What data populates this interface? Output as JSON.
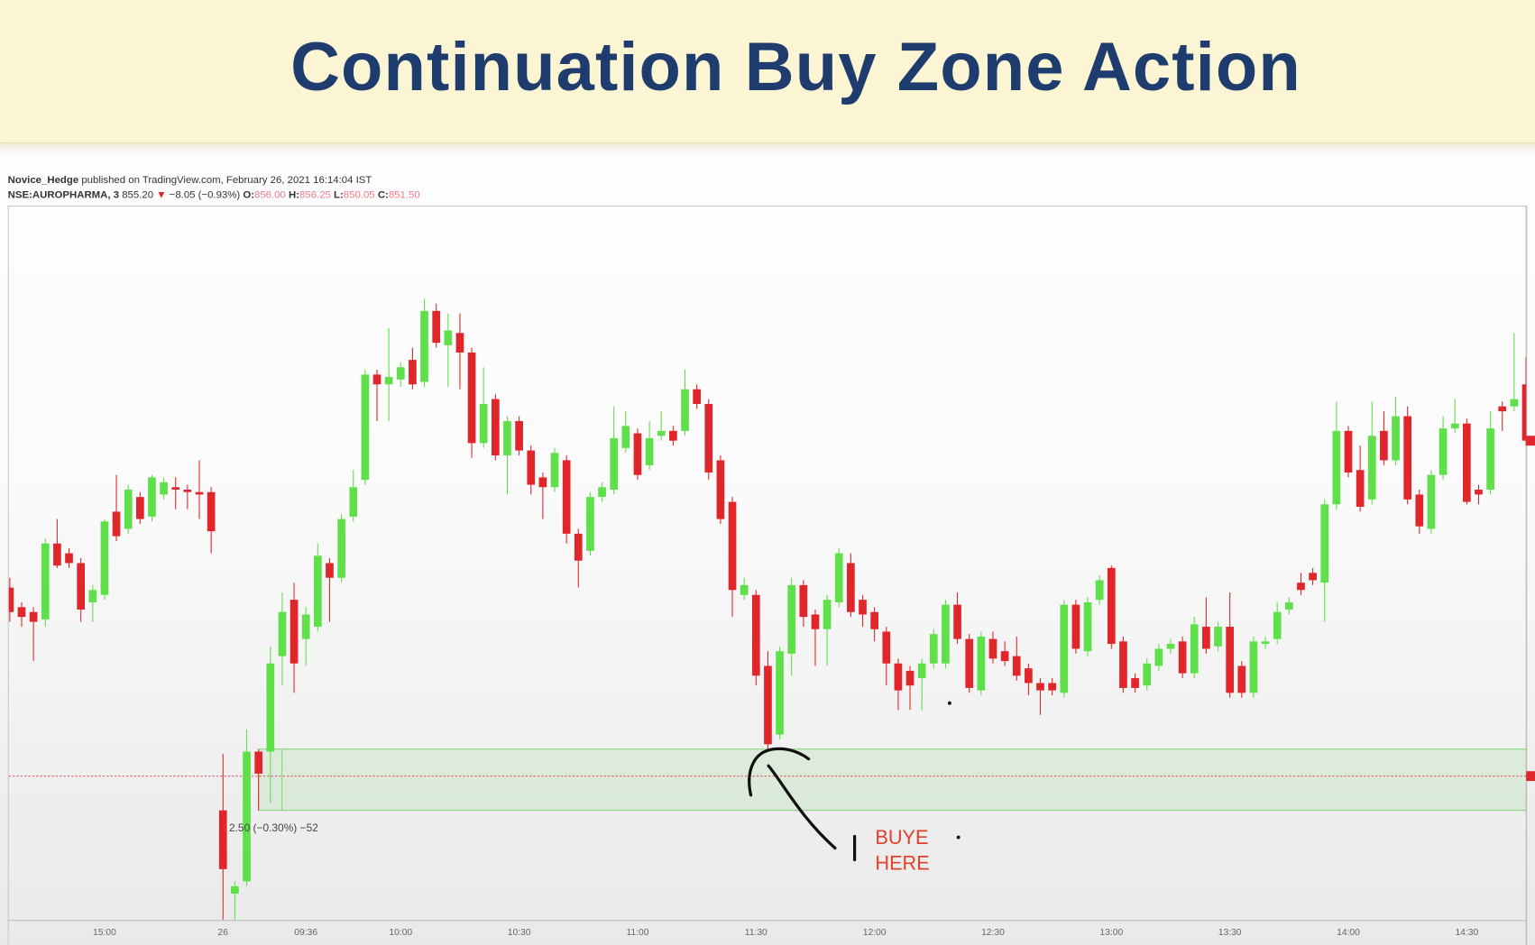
{
  "slide_title": "Continuation Buy Zone Action",
  "header": {
    "author": "Novice_Hedge",
    "published": " published on TradingView.com, February 26, 2021 16:14:04 IST",
    "symbol": "NSE:AUROPHARMA, 3",
    "price": "855.20",
    "arrow": "▼",
    "change": "−8.05 (−0.93%)",
    "ohlc": [
      {
        "label": "O:",
        "value": "856.00"
      },
      {
        "label": "H:",
        "value": "856.25"
      },
      {
        "label": "L:",
        "value": "850.05"
      },
      {
        "label": "C:",
        "value": "851.50"
      }
    ]
  },
  "chart_data": {
    "type": "candlestick",
    "up_color": "#5fe04a",
    "down_color": "#e0262b",
    "ylim": [
      835,
      865
    ],
    "categories": [
      null,
      null,
      null,
      null,
      null,
      null,
      null,
      null,
      "15:00",
      null,
      null,
      null,
      null,
      null,
      null,
      null,
      null,
      null,
      "26",
      null,
      null,
      null,
      null,
      null,
      null,
      "09:36",
      null,
      null,
      null,
      null,
      null,
      null,
      null,
      "10:00",
      null,
      null,
      null,
      null,
      null,
      null,
      null,
      null,
      null,
      "10:30",
      null,
      null,
      null,
      null,
      null,
      null,
      null,
      null,
      null,
      "11:00",
      null,
      null,
      null,
      null,
      null,
      null,
      null,
      null,
      null,
      "11:30",
      null,
      null,
      null,
      null,
      null,
      null,
      null,
      null,
      null,
      "12:00",
      null,
      null,
      null,
      null,
      null,
      null,
      null,
      null,
      null,
      "12:30",
      null,
      null,
      null,
      null,
      null,
      null,
      null,
      null,
      null,
      "13:00",
      null,
      null,
      null,
      null,
      null,
      null,
      null,
      null,
      null,
      "13:30",
      null,
      null,
      null,
      null,
      null,
      null,
      null,
      null,
      null,
      "14:00",
      null,
      null,
      null,
      null,
      null,
      null,
      null,
      null,
      null,
      "14:30",
      null,
      null,
      null,
      null,
      null
    ],
    "candles": [
      [
        848.6,
        849.0,
        847.2,
        847.6
      ],
      [
        847.8,
        848.0,
        847.0,
        847.4
      ],
      [
        847.6,
        847.8,
        845.6,
        847.2
      ],
      [
        847.3,
        850.6,
        847.0,
        850.4
      ],
      [
        850.4,
        851.4,
        849.4,
        849.5
      ],
      [
        850.0,
        850.2,
        849.4,
        849.6
      ],
      [
        849.6,
        849.8,
        847.2,
        847.7
      ],
      [
        848.0,
        848.7,
        847.2,
        848.5
      ],
      [
        848.3,
        851.4,
        848.1,
        851.3
      ],
      [
        851.7,
        853.2,
        850.5,
        850.7
      ],
      [
        851.0,
        852.8,
        850.8,
        852.6
      ],
      [
        852.3,
        852.5,
        851.2,
        851.4
      ],
      [
        851.5,
        853.2,
        851.3,
        853.1
      ],
      [
        852.4,
        853.1,
        852.2,
        852.9
      ],
      [
        852.7,
        853.1,
        851.8,
        852.6
      ],
      [
        852.6,
        852.8,
        851.8,
        852.5
      ],
      [
        852.5,
        853.8,
        851.4,
        852.4
      ],
      [
        852.5,
        852.7,
        850.0,
        850.9
      ],
      [
        839.5,
        841.8,
        835.0,
        837.1
      ],
      [
        836.1,
        836.6,
        835.0,
        836.4
      ],
      [
        836.6,
        842.8,
        836.4,
        841.9
      ],
      [
        841.9,
        842.0,
        839.5,
        841.0
      ],
      [
        841.9,
        846.2,
        839.8,
        845.5
      ],
      [
        845.8,
        848.4,
        844.6,
        847.6
      ],
      [
        848.1,
        848.8,
        844.3,
        845.5
      ],
      [
        846.5,
        847.8,
        845.4,
        847.5
      ],
      [
        847.0,
        850.4,
        846.8,
        849.9
      ],
      [
        849.6,
        849.8,
        847.2,
        849.0
      ],
      [
        849.0,
        851.6,
        848.8,
        851.4
      ],
      [
        851.5,
        853.4,
        851.3,
        852.7
      ],
      [
        853.0,
        857.5,
        852.8,
        857.3
      ],
      [
        857.3,
        857.5,
        855.4,
        856.9
      ],
      [
        856.9,
        859.2,
        855.4,
        857.2
      ],
      [
        857.1,
        857.8,
        856.8,
        857.6
      ],
      [
        857.9,
        858.4,
        856.7,
        856.9
      ],
      [
        857.0,
        860.4,
        856.8,
        859.9
      ],
      [
        859.9,
        860.2,
        858.4,
        858.6
      ],
      [
        858.5,
        859.8,
        856.8,
        859.1
      ],
      [
        859.0,
        859.8,
        856.7,
        858.2
      ],
      [
        858.2,
        858.4,
        853.9,
        854.5
      ],
      [
        854.5,
        857.6,
        854.3,
        856.1
      ],
      [
        856.3,
        856.5,
        853.8,
        854.0
      ],
      [
        854.0,
        855.6,
        852.4,
        855.4
      ],
      [
        855.4,
        855.6,
        854.0,
        854.2
      ],
      [
        854.2,
        854.4,
        852.4,
        852.8
      ],
      [
        853.1,
        853.3,
        851.4,
        852.7
      ],
      [
        852.7,
        854.3,
        852.5,
        854.1
      ],
      [
        853.8,
        854.0,
        850.4,
        850.8
      ],
      [
        850.8,
        851.0,
        848.6,
        849.7
      ],
      [
        850.1,
        852.5,
        849.9,
        852.3
      ],
      [
        852.3,
        852.9,
        852.1,
        852.7
      ],
      [
        852.6,
        856.0,
        852.4,
        854.7
      ],
      [
        854.3,
        855.8,
        854.1,
        855.2
      ],
      [
        854.9,
        855.1,
        853.0,
        853.2
      ],
      [
        853.6,
        855.4,
        853.4,
        854.7
      ],
      [
        854.8,
        855.8,
        854.6,
        855.0
      ],
      [
        855.0,
        855.2,
        854.4,
        854.6
      ],
      [
        855.0,
        857.5,
        854.8,
        856.7
      ],
      [
        856.7,
        856.9,
        855.9,
        856.1
      ],
      [
        856.1,
        856.3,
        853.0,
        853.3
      ],
      [
        853.8,
        854.0,
        851.2,
        851.4
      ],
      [
        852.1,
        852.3,
        847.4,
        848.5
      ],
      [
        848.3,
        849.0,
        848.1,
        848.7
      ],
      [
        848.3,
        848.5,
        844.6,
        845.0
      ],
      [
        845.4,
        846.0,
        842.0,
        842.2
      ],
      [
        842.6,
        846.2,
        842.4,
        846.0
      ],
      [
        845.9,
        849.0,
        845.0,
        848.7
      ],
      [
        848.7,
        848.9,
        847.0,
        847.4
      ],
      [
        847.5,
        847.7,
        845.4,
        846.9
      ],
      [
        846.9,
        848.3,
        845.4,
        848.1
      ],
      [
        848.0,
        850.2,
        847.8,
        850.0
      ],
      [
        849.6,
        850.0,
        847.4,
        847.6
      ],
      [
        848.1,
        848.3,
        847.0,
        847.5
      ],
      [
        847.6,
        847.8,
        846.4,
        846.9
      ],
      [
        846.8,
        847.0,
        844.6,
        845.5
      ],
      [
        845.5,
        845.7,
        843.6,
        844.4
      ],
      [
        845.2,
        845.4,
        843.6,
        844.6
      ],
      [
        844.9,
        845.7,
        843.6,
        845.5
      ],
      [
        845.5,
        846.9,
        845.3,
        846.7
      ],
      [
        845.5,
        848.1,
        845.3,
        847.9
      ],
      [
        847.9,
        848.4,
        846.3,
        846.5
      ],
      [
        846.5,
        846.7,
        844.3,
        844.5
      ],
      [
        844.4,
        846.8,
        844.2,
        846.6
      ],
      [
        846.5,
        846.8,
        845.5,
        845.7
      ],
      [
        846.0,
        846.4,
        845.4,
        845.6
      ],
      [
        845.8,
        846.6,
        844.8,
        845.0
      ],
      [
        845.3,
        845.5,
        844.2,
        844.7
      ],
      [
        844.7,
        844.9,
        843.4,
        844.4
      ],
      [
        844.7,
        844.9,
        844.2,
        844.4
      ],
      [
        844.3,
        848.1,
        844.1,
        847.9
      ],
      [
        847.9,
        848.1,
        845.9,
        846.1
      ],
      [
        846.0,
        848.2,
        845.8,
        848.0
      ],
      [
        848.1,
        849.1,
        847.9,
        848.9
      ],
      [
        849.4,
        849.5,
        846.1,
        846.3
      ],
      [
        846.4,
        846.6,
        844.3,
        844.5
      ],
      [
        844.9,
        845.1,
        844.3,
        844.5
      ],
      [
        844.6,
        845.7,
        844.4,
        845.5
      ],
      [
        845.4,
        846.3,
        845.2,
        846.1
      ],
      [
        846.1,
        846.5,
        845.9,
        846.3
      ],
      [
        846.4,
        846.6,
        844.9,
        845.1
      ],
      [
        845.1,
        847.4,
        844.9,
        847.1
      ],
      [
        847.0,
        848.2,
        845.9,
        846.1
      ],
      [
        846.2,
        847.2,
        846.0,
        847.0
      ],
      [
        847.0,
        848.4,
        844.1,
        844.3
      ],
      [
        845.4,
        845.6,
        844.1,
        844.3
      ],
      [
        844.3,
        846.6,
        844.1,
        846.4
      ],
      [
        846.3,
        846.6,
        846.1,
        846.4
      ],
      [
        846.5,
        848.0,
        846.3,
        847.6
      ],
      [
        847.7,
        848.2,
        847.5,
        848.0
      ],
      [
        848.8,
        849.2,
        848.3,
        848.5
      ],
      [
        849.2,
        849.4,
        848.7,
        848.9
      ],
      [
        848.8,
        852.2,
        847.2,
        852.0
      ],
      [
        852.0,
        856.2,
        851.8,
        855.0
      ],
      [
        855.0,
        855.2,
        853.1,
        853.3
      ],
      [
        853.4,
        854.4,
        851.7,
        851.9
      ],
      [
        852.2,
        856.2,
        852.0,
        854.8
      ],
      [
        855.0,
        855.8,
        853.6,
        853.8
      ],
      [
        853.8,
        856.4,
        853.6,
        855.6
      ],
      [
        855.6,
        856.0,
        852.0,
        852.2
      ],
      [
        852.4,
        852.6,
        850.8,
        851.1
      ],
      [
        851.0,
        853.4,
        850.8,
        853.2
      ],
      [
        853.2,
        855.6,
        853.0,
        855.1
      ],
      [
        855.1,
        856.3,
        854.9,
        855.3
      ],
      [
        855.3,
        855.5,
        852.0,
        852.1
      ],
      [
        852.6,
        852.8,
        852.0,
        852.4
      ],
      [
        852.6,
        855.8,
        852.4,
        855.1
      ],
      [
        856.0,
        856.2,
        855.0,
        855.8
      ],
      [
        856.0,
        859.0,
        855.8,
        856.3
      ],
      [
        856.9,
        858.0,
        854.4,
        854.6
      ]
    ],
    "zone": [
      839.5,
      842.0
    ],
    "ref_line": 840.9,
    "measure_label": "2.50 (−0.30%) −52",
    "annotation": [
      "BUYE",
      "HERE"
    ]
  }
}
